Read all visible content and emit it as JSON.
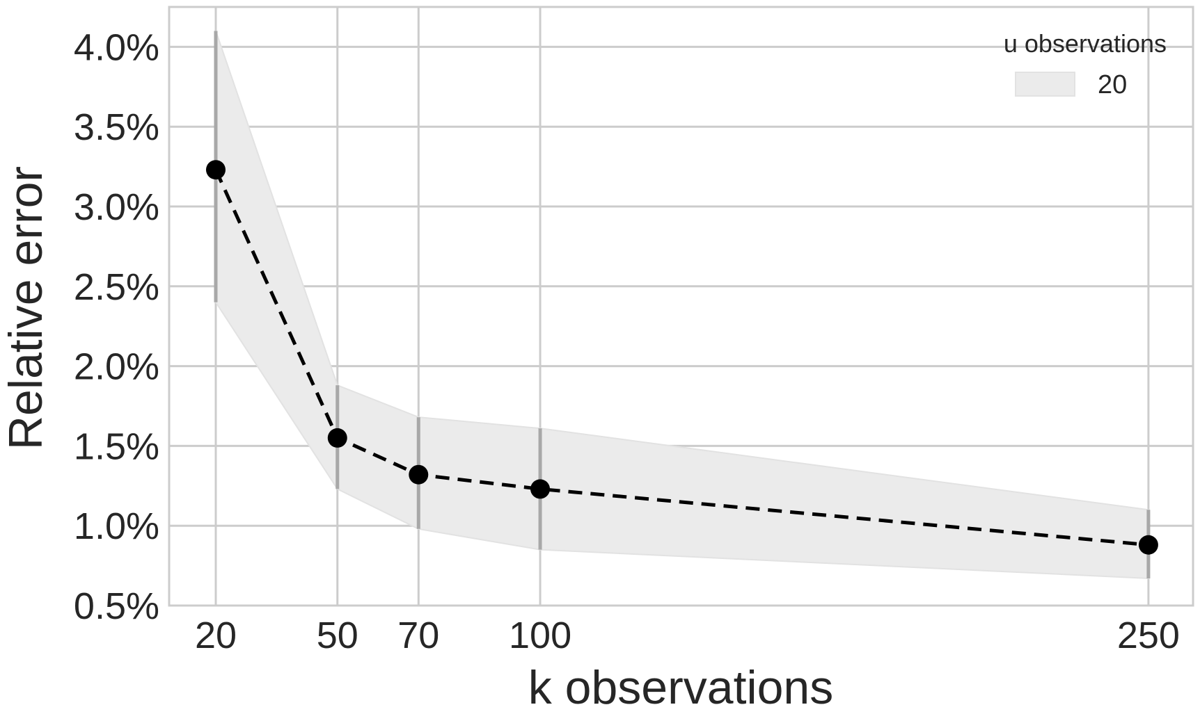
{
  "chart_data": {
    "type": "line",
    "title": "",
    "xlabel": "k observations",
    "ylabel": "Relative error",
    "x": [
      20,
      50,
      70,
      100,
      250
    ],
    "x_tick_labels": [
      "20",
      "50",
      "70",
      "100",
      "250"
    ],
    "xlim": [
      8.5,
      261
    ],
    "ylim": [
      0.5,
      4.25
    ],
    "y_ticks": [
      0.5,
      1.0,
      1.5,
      2.0,
      2.5,
      3.0,
      3.5,
      4.0
    ],
    "y_tick_labels": [
      "0.5%",
      "1.0%",
      "1.5%",
      "2.0%",
      "2.5%",
      "3.0%",
      "3.5%",
      "4.0%"
    ],
    "grid": true,
    "legend": {
      "title": "u observations",
      "placement": "top-right",
      "entries": [
        "20"
      ]
    },
    "series": [
      {
        "name": "20",
        "mean": [
          3.23,
          1.55,
          1.32,
          1.23,
          0.88
        ],
        "band_lower": [
          2.4,
          1.23,
          0.98,
          0.85,
          0.67
        ],
        "band_upper": [
          4.1,
          1.88,
          1.68,
          1.61,
          1.1
        ],
        "colors": {
          "line": "#000000",
          "marker": "#000000",
          "band": "#ebebeb",
          "band_edge": "#e2e2e2",
          "error_bar": "#a8a8a8"
        }
      }
    ],
    "colors": {
      "grid": "#cccccc",
      "frame": "#cccccc",
      "text": "#262626"
    }
  }
}
